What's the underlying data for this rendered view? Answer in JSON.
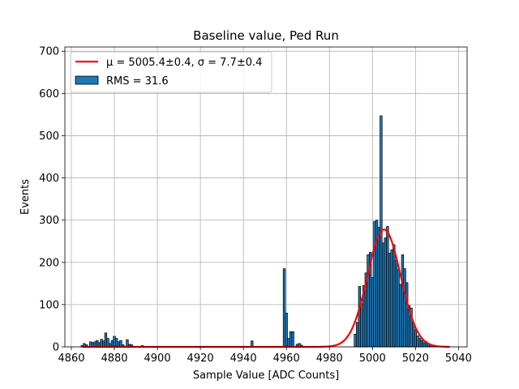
{
  "chart_data": {
    "type": "bar",
    "title": "Baseline value, Ped Run",
    "xlabel": "Sample Value [ADC Counts]",
    "ylabel": "Events",
    "xlim": [
      4857,
      5044
    ],
    "ylim": [
      0,
      710
    ],
    "xticks": [
      4860,
      4880,
      4900,
      4920,
      4940,
      4960,
      4980,
      5000,
      5020,
      5040
    ],
    "yticks": [
      0,
      100,
      200,
      300,
      400,
      500,
      600,
      700
    ],
    "grid": true,
    "legend_position": "top-left",
    "bin_width": 1,
    "histogram": {
      "name": "RMS = 31.6",
      "color": "#1f77b4",
      "edgecolor": "#000000",
      "bins": [
        [
          4865,
          3
        ],
        [
          4866,
          8
        ],
        [
          4867,
          5
        ],
        [
          4869,
          12
        ],
        [
          4870,
          10
        ],
        [
          4871,
          12
        ],
        [
          4872,
          15
        ],
        [
          4873,
          10
        ],
        [
          4874,
          18
        ],
        [
          4875,
          14
        ],
        [
          4876,
          33
        ],
        [
          4877,
          20
        ],
        [
          4878,
          8
        ],
        [
          4879,
          15
        ],
        [
          4880,
          25
        ],
        [
          4881,
          20
        ],
        [
          4882,
          12
        ],
        [
          4883,
          15
        ],
        [
          4884,
          5
        ],
        [
          4886,
          17
        ],
        [
          4887,
          6
        ],
        [
          4888,
          5
        ],
        [
          4893,
          3
        ],
        [
          4944,
          14
        ],
        [
          4959,
          185
        ],
        [
          4960,
          80
        ],
        [
          4961,
          20
        ],
        [
          4962,
          36
        ],
        [
          4963,
          36
        ],
        [
          4965,
          6
        ],
        [
          4966,
          8
        ],
        [
          4967,
          4
        ],
        [
          4992,
          30
        ],
        [
          4993,
          58
        ],
        [
          4994,
          143
        ],
        [
          4995,
          102
        ],
        [
          4996,
          145
        ],
        [
          4997,
          175
        ],
        [
          4998,
          218
        ],
        [
          4999,
          224
        ],
        [
          5000,
          164
        ],
        [
          5001,
          297
        ],
        [
          5002,
          300
        ],
        [
          5003,
          283
        ],
        [
          5004,
          547
        ],
        [
          5005,
          246
        ],
        [
          5006,
          258
        ],
        [
          5007,
          285
        ],
        [
          5008,
          222
        ],
        [
          5009,
          230
        ],
        [
          5010,
          242
        ],
        [
          5011,
          205
        ],
        [
          5012,
          183
        ],
        [
          5013,
          148
        ],
        [
          5014,
          218
        ],
        [
          5015,
          185
        ],
        [
          5016,
          152
        ],
        [
          5017,
          98
        ],
        [
          5018,
          92
        ],
        [
          5019,
          56
        ],
        [
          5020,
          40
        ],
        [
          5021,
          26
        ],
        [
          5022,
          20
        ],
        [
          5023,
          15
        ],
        [
          5024,
          10
        ],
        [
          5025,
          12
        ],
        [
          5026,
          8
        ],
        [
          5027,
          5
        ],
        [
          5028,
          4
        ],
        [
          5029,
          3
        ]
      ]
    },
    "fit": {
      "name": "μ = 5005.4±0.4, σ = 7.7±0.4",
      "mean": 5005.4,
      "sigma": 7.7,
      "amplitude": 278,
      "x_range": [
        4865,
        5036
      ],
      "color": "#ff0000"
    }
  }
}
